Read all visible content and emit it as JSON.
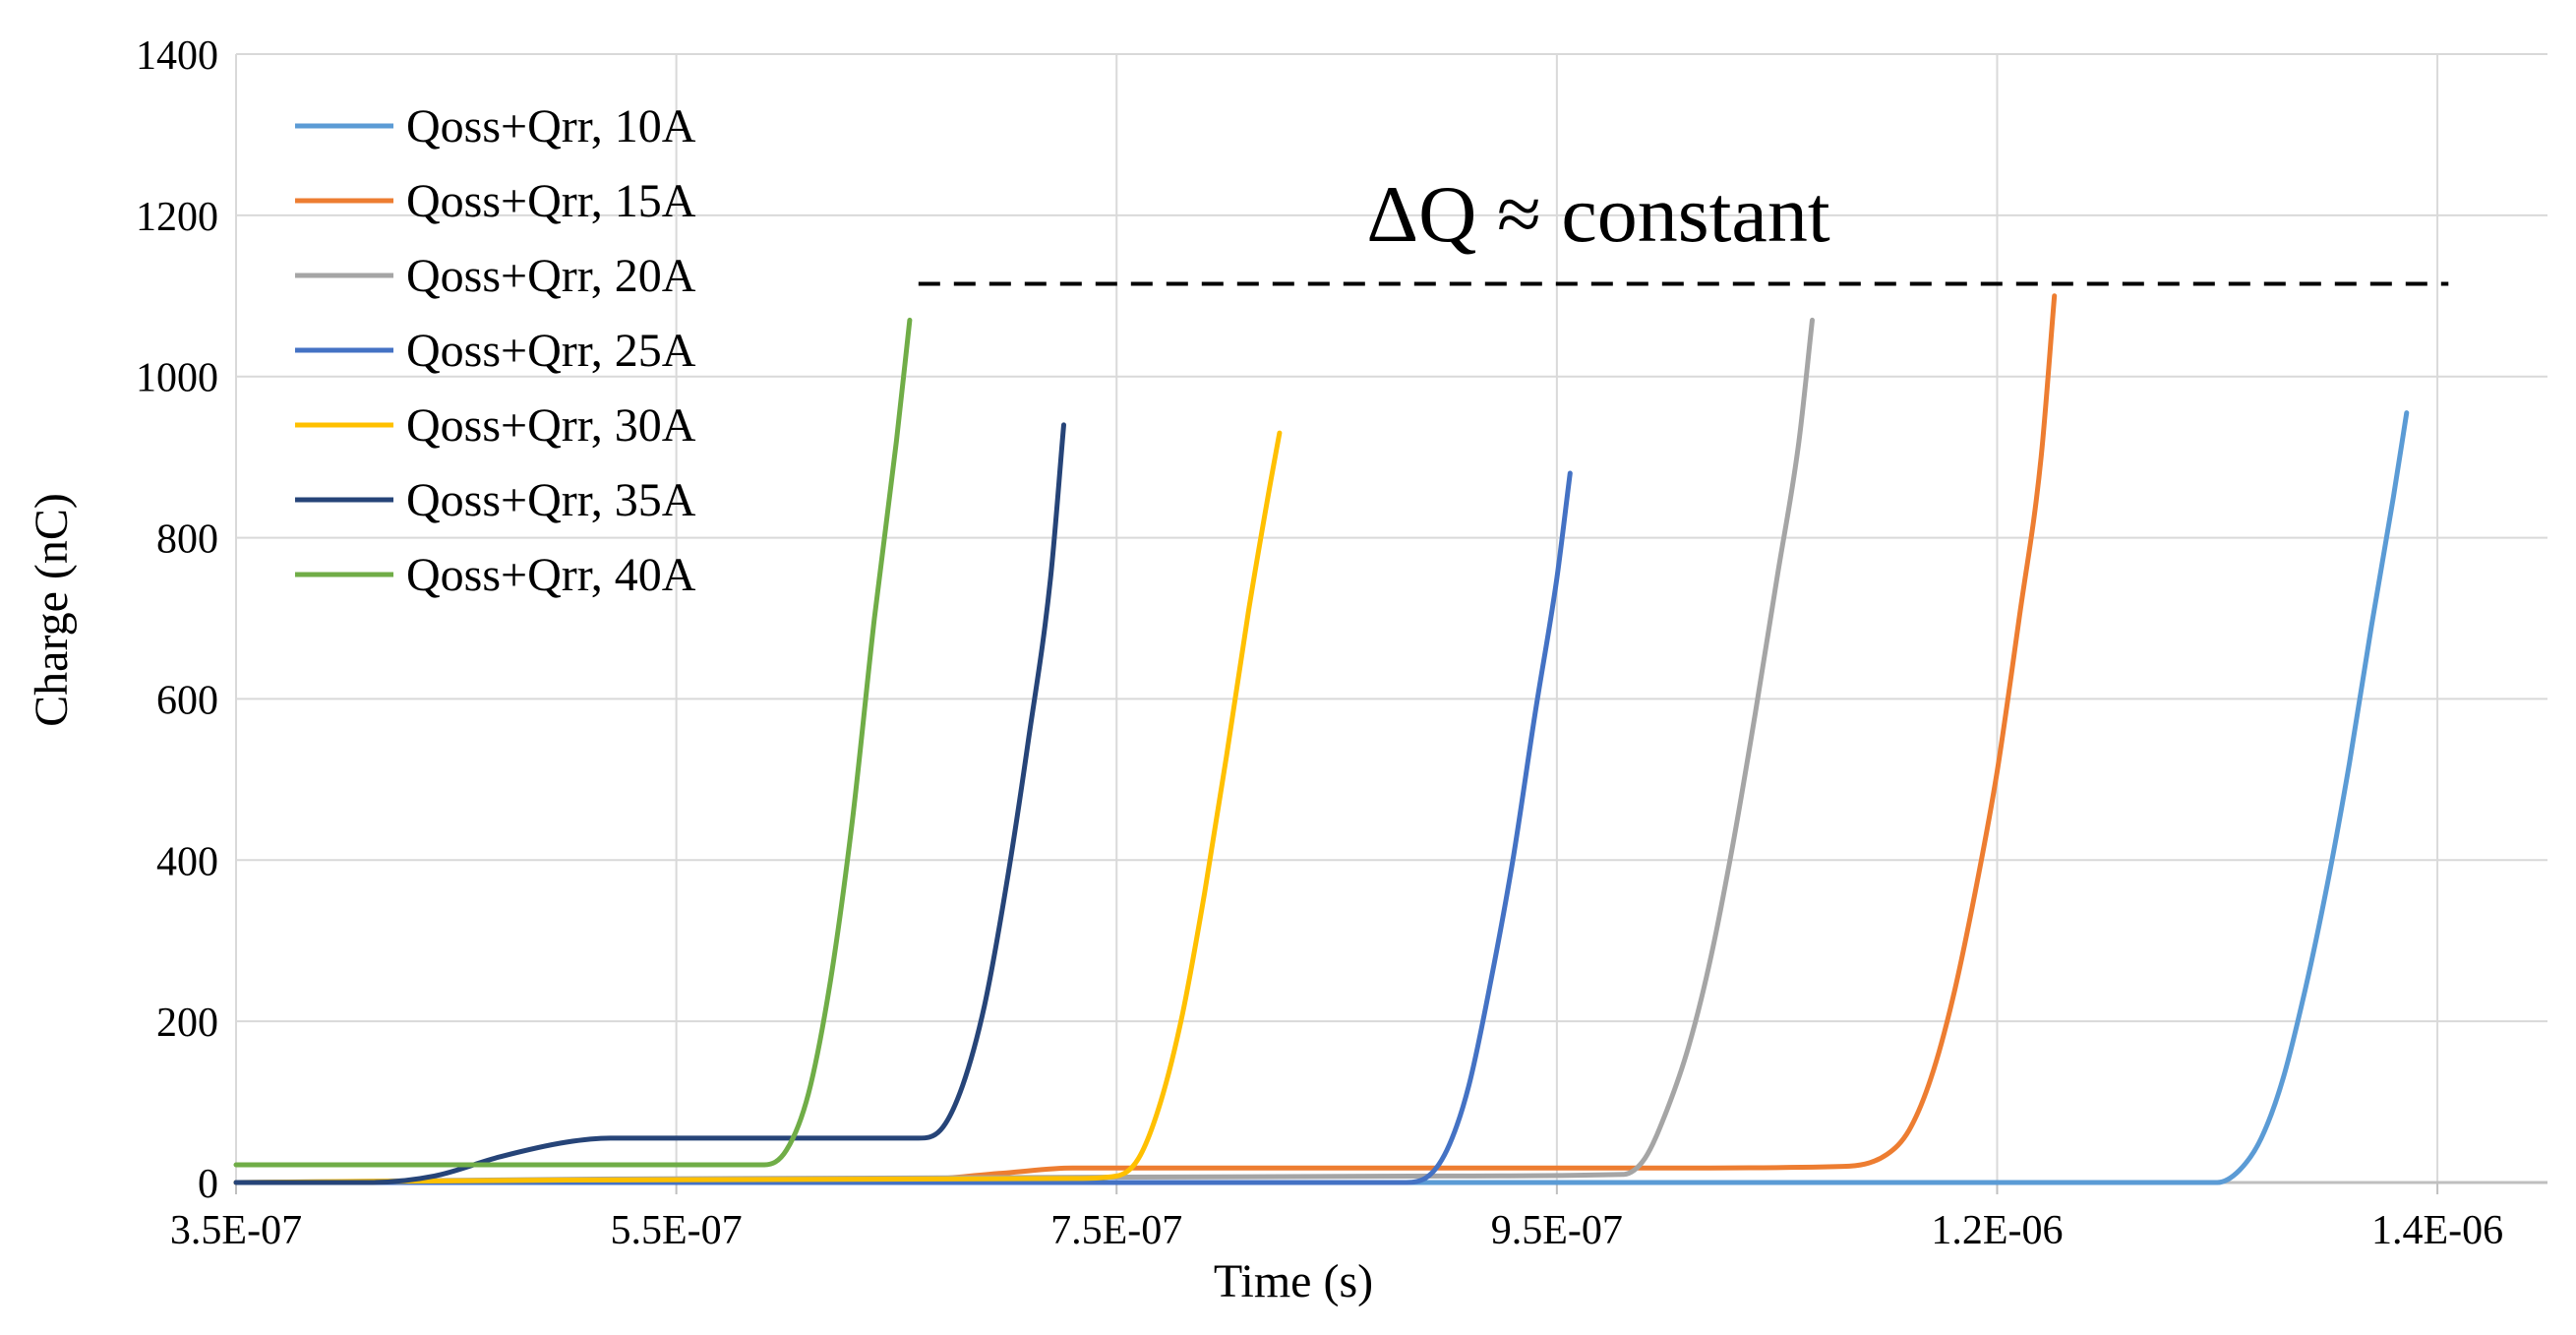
{
  "chart_data": {
    "type": "line",
    "title": "",
    "xlabel": "Time (s)",
    "ylabel": "Charge (nC)",
    "xlim": [
      3.5e-07,
      1.4e-06
    ],
    "ylim": [
      0,
      1400
    ],
    "x_ticks": [
      3.5e-07,
      5.5e-07,
      7.5e-07,
      9.5e-07,
      1.15e-06,
      1.35e-06
    ],
    "x_tick_labels": [
      "3.5E-07",
      "5.5E-07",
      "7.5E-07",
      "9.5E-07",
      "1.2E-06",
      "1.4E-06"
    ],
    "y_ticks": [
      0,
      200,
      400,
      600,
      800,
      1000,
      1200,
      1400
    ],
    "y_tick_labels": [
      "0",
      "200",
      "400",
      "600",
      "800",
      "1000",
      "1200",
      "1400"
    ],
    "grid": true,
    "legend_position": "top-left",
    "annotation": {
      "text": "ΔQ ≈ constant",
      "dashed_level": 1115,
      "x_start": 6.6e-07,
      "x_end": 1.355e-06
    },
    "series": [
      {
        "name": "Qoss+Qrr, 10A",
        "color": "#5B9BD5",
        "points": [
          [
            3.5e-07,
            0
          ],
          [
            1.2e-06,
            0
          ],
          [
            1.25e-06,
            0
          ],
          [
            1.26e-06,
            15
          ],
          [
            1.27e-06,
            55
          ],
          [
            1.28e-06,
            130
          ],
          [
            1.29e-06,
            240
          ],
          [
            1.3e-06,
            370
          ],
          [
            1.31e-06,
            520
          ],
          [
            1.32e-06,
            690
          ],
          [
            1.33e-06,
            850
          ],
          [
            1.336e-06,
            955
          ]
        ]
      },
      {
        "name": "Qoss+Qrr, 15A",
        "color": "#ED7D31",
        "points": [
          [
            3.5e-07,
            0
          ],
          [
            6.5e-07,
            2
          ],
          [
            7e-07,
            12
          ],
          [
            7.3e-07,
            18
          ],
          [
            9e-07,
            18
          ],
          [
            1e-06,
            18
          ],
          [
            1.08e-06,
            20
          ],
          [
            1.1e-06,
            35
          ],
          [
            1.11e-06,
            65
          ],
          [
            1.12e-06,
            130
          ],
          [
            1.13e-06,
            230
          ],
          [
            1.14e-06,
            360
          ],
          [
            1.15e-06,
            510
          ],
          [
            1.16e-06,
            700
          ],
          [
            1.17e-06,
            900
          ],
          [
            1.176e-06,
            1100
          ]
        ]
      },
      {
        "name": "Qoss+Qrr, 20A",
        "color": "#A5A5A5",
        "points": [
          [
            3.5e-07,
            0
          ],
          [
            5e-07,
            4
          ],
          [
            9e-07,
            8
          ],
          [
            9.8e-07,
            10
          ],
          [
            9.9e-07,
            30
          ],
          [
            1e-06,
            90
          ],
          [
            1.01e-06,
            170
          ],
          [
            1.02e-06,
            280
          ],
          [
            1.03e-06,
            420
          ],
          [
            1.04e-06,
            580
          ],
          [
            1.05e-06,
            750
          ],
          [
            1.06e-06,
            920
          ],
          [
            1.066e-06,
            1070
          ]
        ]
      },
      {
        "name": "Qoss+Qrr, 25A",
        "color": "#4472C4",
        "points": [
          [
            3.5e-07,
            0
          ],
          [
            8.8e-07,
            0
          ],
          [
            8.9e-07,
            5
          ],
          [
            9e-07,
            40
          ],
          [
            9.1e-07,
            120
          ],
          [
            9.2e-07,
            250
          ],
          [
            9.3e-07,
            400
          ],
          [
            9.4e-07,
            580
          ],
          [
            9.5e-07,
            750
          ],
          [
            9.56e-07,
            880
          ]
        ]
      },
      {
        "name": "Qoss+Qrr, 30A",
        "color": "#FFC000",
        "points": [
          [
            3.5e-07,
            0
          ],
          [
            5e-07,
            3
          ],
          [
            7.3e-07,
            5
          ],
          [
            7.5e-07,
            8
          ],
          [
            7.6e-07,
            30
          ],
          [
            7.7e-07,
            100
          ],
          [
            7.8e-07,
            210
          ],
          [
            7.9e-07,
            360
          ],
          [
            8e-07,
            530
          ],
          [
            8.1e-07,
            710
          ],
          [
            8.2e-07,
            870
          ],
          [
            8.24e-07,
            930
          ]
        ]
      },
      {
        "name": "Qoss+Qrr, 35A",
        "color": "#264478",
        "points": [
          [
            3.5e-07,
            0
          ],
          [
            4.1e-07,
            0
          ],
          [
            4.4e-07,
            8
          ],
          [
            4.7e-07,
            32
          ],
          [
            5e-07,
            50
          ],
          [
            5.2e-07,
            55
          ],
          [
            6e-07,
            55
          ],
          [
            6.6e-07,
            55
          ],
          [
            6.7e-07,
            65
          ],
          [
            6.8e-07,
            120
          ],
          [
            6.9e-07,
            220
          ],
          [
            7e-07,
            370
          ],
          [
            7.1e-07,
            550
          ],
          [
            7.2e-07,
            750
          ],
          [
            7.26e-07,
            940
          ]
        ]
      },
      {
        "name": "Qoss+Qrr, 40A",
        "color": "#70AD47",
        "points": [
          [
            3.5e-07,
            22
          ],
          [
            5e-07,
            22
          ],
          [
            5.9e-07,
            22
          ],
          [
            6e-07,
            40
          ],
          [
            6.1e-07,
            110
          ],
          [
            6.2e-07,
            250
          ],
          [
            6.3e-07,
            450
          ],
          [
            6.4e-07,
            700
          ],
          [
            6.5e-07,
            920
          ],
          [
            6.56e-07,
            1070
          ]
        ]
      }
    ]
  }
}
